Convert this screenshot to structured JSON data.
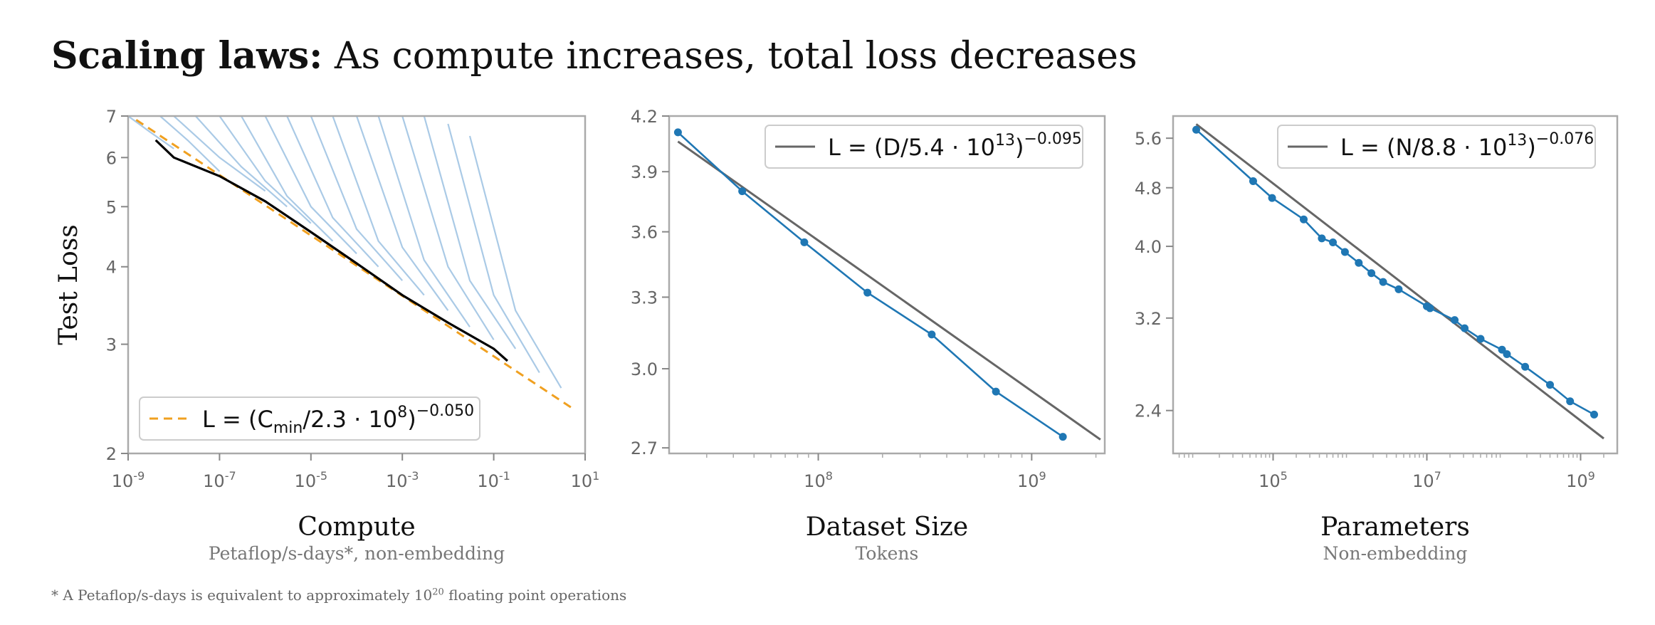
{
  "title_bold": "Scaling laws:",
  "title_rest": " As compute increases, total loss decreases",
  "footnote": {
    "prefix": "* A Petaflop/s-days is equivalent to approximately 10",
    "exp": "20",
    "suffix": " floating point operations"
  },
  "colors": {
    "frame": "#aaaaaa",
    "point_line": "#1f77b4",
    "fit_line": "#666666",
    "fit_dashed": "#f0a020",
    "frontier": "#000000",
    "curves": "#8db8dd"
  },
  "chart_data": [
    {
      "type": "line",
      "xscale": "log",
      "yscale": "log",
      "xlim": [
        1e-09,
        10
      ],
      "ylim": [
        2,
        7
      ],
      "xlabel": "Compute",
      "xsublabel": "Petaflop/s-days*, non-embedding",
      "ylabel": "Test Loss",
      "xticks": [
        {
          "base": "10",
          "exp": "-9",
          "value": 1e-09
        },
        {
          "base": "10",
          "exp": "-7",
          "value": 1e-07
        },
        {
          "base": "10",
          "exp": "-5",
          "value": 1e-05
        },
        {
          "base": "10",
          "exp": "-3",
          "value": 0.001
        },
        {
          "base": "10",
          "exp": "-1",
          "value": 0.1
        },
        {
          "base": "10",
          "exp": "1",
          "value": 10
        }
      ],
      "yticks": [
        {
          "label": "2",
          "value": 2
        },
        {
          "label": "3",
          "value": 3
        },
        {
          "label": "4",
          "value": 4
        },
        {
          "label": "5",
          "value": 5
        },
        {
          "label": "6",
          "value": 6
        },
        {
          "label": "7",
          "value": 7
        }
      ],
      "legend": {
        "position": "bottom-left",
        "pre": "L = (C",
        "sub": "min",
        "mid": "/2.3 · 10",
        "exp8": "8",
        "post": ")",
        "exponent": "−0.050"
      },
      "fit": {
        "style": "dashed",
        "x": [
          1.5e-09,
          6
        ],
        "y": [
          6.9,
          2.35
        ]
      },
      "frontier": {
        "x": [
          4e-09,
          1e-08,
          1e-07,
          1e-06,
          1e-05,
          0.0001,
          0.001,
          0.01,
          0.1,
          0.2
        ],
        "y": [
          6.4,
          6.0,
          5.6,
          5.1,
          4.55,
          4.05,
          3.6,
          3.25,
          2.95,
          2.82
        ]
      },
      "curves": [
        {
          "x": [
            1e-09,
            3e-09,
            1e-08
          ],
          "y": [
            7,
            6.6,
            6.2
          ]
        },
        {
          "x": [
            5e-09,
            2e-08,
            1e-07
          ],
          "y": [
            7,
            6.4,
            5.7
          ]
        },
        {
          "x": [
            1e-08,
            1e-07,
            1e-06
          ],
          "y": [
            7,
            6.0,
            5.3
          ]
        },
        {
          "x": [
            3e-08,
            3e-07,
            3e-06
          ],
          "y": [
            7,
            5.8,
            5.0
          ]
        },
        {
          "x": [
            1e-07,
            1e-06,
            1e-05
          ],
          "y": [
            7,
            5.5,
            4.7
          ]
        },
        {
          "x": [
            3e-07,
            3e-06,
            3e-05
          ],
          "y": [
            7,
            5.2,
            4.4
          ]
        },
        {
          "x": [
            1e-06,
            1e-05,
            0.0001
          ],
          "y": [
            7,
            5.0,
            4.2
          ]
        },
        {
          "x": [
            3e-06,
            3e-05,
            0.0003
          ],
          "y": [
            7,
            4.8,
            4.0
          ]
        },
        {
          "x": [
            1e-05,
            0.0001,
            0.001
          ],
          "y": [
            7,
            4.6,
            3.8
          ]
        },
        {
          "x": [
            3e-05,
            0.0003,
            0.003
          ],
          "y": [
            7,
            4.4,
            3.6
          ]
        },
        {
          "x": [
            0.0001,
            0.001,
            0.01
          ],
          "y": [
            7,
            4.3,
            3.4
          ]
        },
        {
          "x": [
            0.0003,
            0.003,
            0.03
          ],
          "y": [
            7,
            4.1,
            3.2
          ]
        },
        {
          "x": [
            0.001,
            0.01,
            0.1
          ],
          "y": [
            7,
            4.0,
            3.05
          ]
        },
        {
          "x": [
            0.003,
            0.03,
            0.3
          ],
          "y": [
            7,
            3.8,
            2.95
          ]
        },
        {
          "x": [
            0.01,
            0.1,
            1
          ],
          "y": [
            6.8,
            3.6,
            2.7
          ]
        },
        {
          "x": [
            0.03,
            0.3,
            3
          ],
          "y": [
            6.5,
            3.4,
            2.55
          ]
        }
      ]
    },
    {
      "type": "line",
      "xscale": "log",
      "yscale": "log",
      "xlim": [
        20000000.0,
        2200000000.0
      ],
      "ylim": [
        2.68,
        4.2
      ],
      "xlabel": "Dataset Size",
      "xsublabel": "Tokens",
      "yticks": [
        {
          "label": "4.2",
          "value": 4.2
        },
        {
          "label": "3.9",
          "value": 3.9
        },
        {
          "label": "3.6",
          "value": 3.6
        },
        {
          "label": "3.3",
          "value": 3.3
        },
        {
          "label": "3.0",
          "value": 3.0
        },
        {
          "label": "2.7",
          "value": 2.7
        }
      ],
      "xticks": [
        {
          "base": "10",
          "exp": "8",
          "value": 100000000.0
        },
        {
          "base": "10",
          "exp": "9",
          "value": 1000000000.0
        }
      ],
      "legend": {
        "position": "top-right",
        "pre": "L = (D/5.4 · 10",
        "exp13": "13",
        "post": ")",
        "exponent": "−0.095"
      },
      "fit": {
        "style": "solid",
        "x": [
          22000000.0,
          2100000000.0
        ],
        "y": [
          4.06,
          2.73
        ]
      },
      "series": {
        "x": [
          22000000.0,
          44000000.0,
          86000000.0,
          170000000.0,
          340000000.0,
          680000000.0,
          1400000000.0
        ],
        "y": [
          4.11,
          3.8,
          3.55,
          3.32,
          3.14,
          2.91,
          2.74
        ]
      }
    },
    {
      "type": "line",
      "xscale": "log",
      "yscale": "log",
      "xlim": [
        5000.0,
        3000000000.0
      ],
      "ylim": [
        2.1,
        6.0
      ],
      "xlabel": "Parameters",
      "xsublabel": "Non-embedding",
      "yticks": [
        {
          "label": "5.6",
          "value": 5.6
        },
        {
          "label": "4.8",
          "value": 4.8
        },
        {
          "label": "4.0",
          "value": 4.0
        },
        {
          "label": "3.2",
          "value": 3.2
        },
        {
          "label": "2.4",
          "value": 2.4
        }
      ],
      "xticks": [
        {
          "base": "10",
          "exp": "5",
          "value": 100000.0
        },
        {
          "base": "10",
          "exp": "7",
          "value": 10000000.0
        },
        {
          "base": "10",
          "exp": "9",
          "value": 1000000000.0
        }
      ],
      "legend": {
        "position": "top-right",
        "pre": "L = (N/8.8 · 10",
        "exp13": "13",
        "post": ")",
        "exponent": "−0.076"
      },
      "fit": {
        "style": "solid",
        "x": [
          10000.0,
          2000000000.0
        ],
        "y": [
          5.85,
          2.2
        ]
      },
      "series": {
        "x": [
          10000.0,
          55000.0,
          97000.0,
          250000.0,
          430000.0,
          600000.0,
          860000.0,
          1300000.0,
          1900000.0,
          2700000.0,
          4300000.0,
          10000000.0,
          11000000.0,
          23000000.0,
          31000000.0,
          50000000.0,
          95000000.0,
          110000000.0,
          190000000.0,
          400000000.0,
          730000000.0,
          1500000000.0
        ],
        "y": [
          5.75,
          4.9,
          4.65,
          4.35,
          4.1,
          4.05,
          3.93,
          3.8,
          3.68,
          3.58,
          3.5,
          3.32,
          3.3,
          3.18,
          3.1,
          3.0,
          2.9,
          2.86,
          2.75,
          2.6,
          2.47,
          2.37
        ]
      }
    }
  ]
}
